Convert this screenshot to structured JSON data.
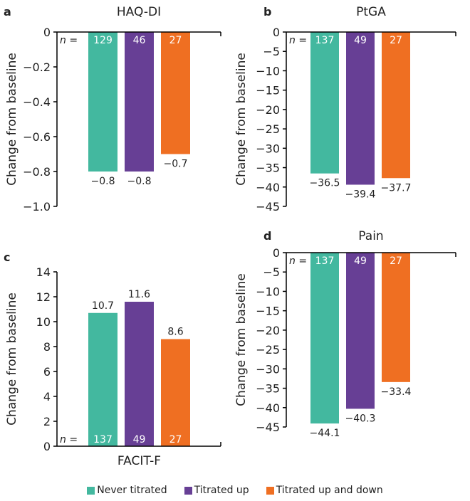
{
  "chart_data": [
    {
      "type": "bar",
      "panel_label": "a",
      "title": "HAQ-DI",
      "title_position": "top",
      "ylabel": "Change from baseline",
      "ylim": [
        -1.0,
        0
      ],
      "ticks": [
        0,
        -0.2,
        -0.4,
        -0.6,
        -0.8,
        -1.0
      ],
      "tick_labels": [
        "0",
        "−0.2",
        "−0.4",
        "−0.6",
        "−0.8",
        "−1.0"
      ],
      "n_prefix": "n =",
      "n": [
        "129",
        "46",
        "27"
      ],
      "values": [
        -0.8,
        -0.8,
        -0.7
      ],
      "value_labels": [
        "−0.8",
        "−0.8",
        "−0.7"
      ]
    },
    {
      "type": "bar",
      "panel_label": "b",
      "title": "PtGA",
      "title_position": "top",
      "ylabel": "Change from baseline",
      "ylim": [
        -45,
        0
      ],
      "ticks": [
        0,
        -5,
        -10,
        -15,
        -20,
        -25,
        -30,
        -35,
        -40,
        -45
      ],
      "tick_labels": [
        "0",
        "−5",
        "−10",
        "−15",
        "−20",
        "−25",
        "−30",
        "−35",
        "−40",
        "−45"
      ],
      "n_prefix": "n =",
      "n": [
        "137",
        "49",
        "27"
      ],
      "values": [
        -36.5,
        -39.4,
        -37.7
      ],
      "value_labels": [
        "−36.5",
        "−39.4",
        "−37.7"
      ]
    },
    {
      "type": "bar",
      "panel_label": "c",
      "title": "FACIT-F",
      "title_position": "bottom",
      "ylabel": "Change from baseline",
      "ylim": [
        0,
        14
      ],
      "ticks": [
        0,
        2,
        4,
        6,
        8,
        10,
        12,
        14
      ],
      "tick_labels": [
        "0",
        "2",
        "4",
        "6",
        "8",
        "10",
        "12",
        "14"
      ],
      "n_prefix": "n =",
      "n": [
        "137",
        "49",
        "27"
      ],
      "values": [
        10.7,
        11.6,
        8.6
      ],
      "value_labels": [
        "10.7",
        "11.6",
        "8.6"
      ]
    },
    {
      "type": "bar",
      "panel_label": "d",
      "title": "Pain",
      "title_position": "top",
      "ylabel": "Change from baseline",
      "ylim": [
        -45,
        0
      ],
      "ticks": [
        0,
        -5,
        -10,
        -15,
        -20,
        -25,
        -30,
        -35,
        -40,
        -45
      ],
      "tick_labels": [
        "0",
        "−5",
        "−10",
        "−15",
        "−20",
        "−25",
        "−30",
        "−35",
        "−40",
        "−45"
      ],
      "n_prefix": "n =",
      "n": [
        "137",
        "49",
        "27"
      ],
      "values": [
        -44.1,
        -40.3,
        -33.4
      ],
      "value_labels": [
        "−44.1",
        "−40.3",
        "−33.4"
      ]
    }
  ],
  "legend": [
    {
      "label": "Never titrated",
      "color": "#43b89f"
    },
    {
      "label": "Titrated up",
      "color": "#673f95"
    },
    {
      "label": "Titrated up and down",
      "color": "#ef6f22"
    }
  ]
}
